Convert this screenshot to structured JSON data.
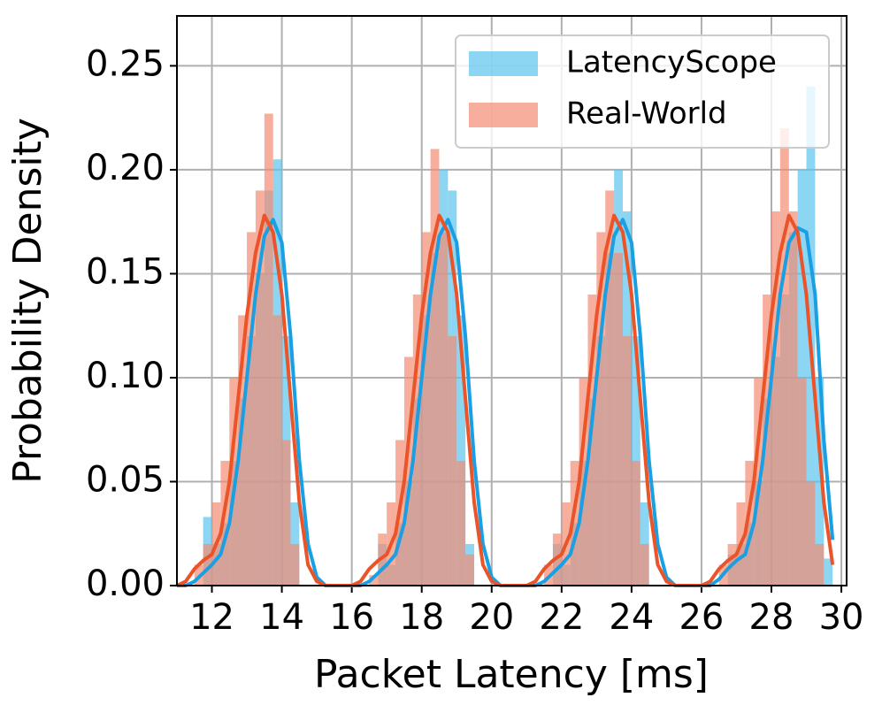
{
  "chart_data": {
    "type": "histogram",
    "xlabel": "Packet Latency [ms]",
    "ylabel": "Probability Density",
    "xlim": [
      11.0,
      30.15
    ],
    "ylim": [
      0,
      0.274
    ],
    "xticks": [
      12,
      14,
      16,
      18,
      20,
      22,
      24,
      26,
      28,
      30
    ],
    "yticks": [
      {
        "value": 0,
        "label": "0.00"
      },
      0.05,
      {
        "value": 0.1,
        "label": "0.10"
      },
      0.15,
      {
        "value": 0.2,
        "label": "0.20"
      },
      0.25
    ],
    "grid": true,
    "legend": "upper right",
    "bins": [
      11.5,
      11.75,
      12,
      12.25,
      12.5,
      12.75,
      13,
      13.25,
      13.5,
      13.75,
      14,
      14.25,
      14.5,
      14.75,
      15,
      15.25,
      15.5,
      15.75,
      16,
      16.25,
      16.5,
      16.75,
      17,
      17.25,
      17.5,
      17.75,
      18,
      18.25,
      18.5,
      18.75,
      19,
      19.25,
      19.5,
      19.75,
      20,
      20.25,
      20.5,
      20.75,
      21,
      21.25,
      21.5,
      21.75,
      22,
      22.25,
      22.5,
      22.75,
      23,
      23.25,
      23.5,
      23.75,
      24,
      24.25,
      24.5,
      24.75,
      25,
      25.25,
      25.5,
      25.75,
      26,
      26.25,
      26.5,
      26.75,
      27,
      27.25,
      27.5,
      27.75,
      28,
      28.25,
      28.5,
      28.75,
      29,
      29.25,
      29.5,
      29.75
    ],
    "series": [
      {
        "name": "LatencyScope",
        "color": "#5bc3ee",
        "values": [
          0,
          0.033,
          0.02,
          0.03,
          0.06,
          0.09,
          0.12,
          0.15,
          0.19,
          0.205,
          0.12,
          0.04,
          0,
          0,
          0,
          0,
          0,
          0,
          0,
          0,
          0,
          0.02,
          0.01,
          0.03,
          0.05,
          0.09,
          0.13,
          0.16,
          0.2,
          0.19,
          0.13,
          0.02,
          0,
          0,
          0,
          0,
          0,
          0,
          0,
          0,
          0,
          0.02,
          0.01,
          0.03,
          0.06,
          0.09,
          0.12,
          0.16,
          0.2,
          0.18,
          0.12,
          0.04,
          0,
          0,
          0,
          0,
          0,
          0,
          0,
          0,
          0,
          0.015,
          0.02,
          0.03,
          0.05,
          0.09,
          0.11,
          0.14,
          0.17,
          0.2,
          0.24,
          0.1,
          0.013
        ]
      },
      {
        "name": "Real-World",
        "color": "#f48c72",
        "values": [
          0.01,
          0.02,
          0.04,
          0.06,
          0.1,
          0.13,
          0.17,
          0.19,
          0.227,
          0.13,
          0.07,
          0.02,
          0,
          0,
          0,
          0,
          0,
          0,
          0,
          0,
          0.005,
          0.025,
          0.04,
          0.07,
          0.11,
          0.14,
          0.17,
          0.21,
          0.17,
          0.12,
          0.06,
          0.015,
          0,
          0,
          0,
          0,
          0,
          0,
          0,
          0,
          0.01,
          0.025,
          0.04,
          0.06,
          0.1,
          0.14,
          0.17,
          0.19,
          0.16,
          0.12,
          0.06,
          0.02,
          0,
          0,
          0,
          0,
          0,
          0,
          0,
          0,
          0.01,
          0.02,
          0.04,
          0.06,
          0.1,
          0.14,
          0.18,
          0.22,
          0.18,
          0.1,
          0.05,
          0.02,
          0
        ]
      }
    ],
    "kde_x": [
      11,
      11.25,
      11.5,
      11.75,
      12,
      12.25,
      12.5,
      12.75,
      13,
      13.25,
      13.5,
      13.75,
      14,
      14.25,
      14.5,
      14.75,
      15,
      15.25,
      15.5,
      15.75,
      16,
      16.25,
      16.5,
      16.75,
      17,
      17.25,
      17.5,
      17.75,
      18,
      18.25,
      18.5,
      18.75,
      19,
      19.25,
      19.5,
      19.75,
      20,
      20.25,
      20.5,
      20.75,
      21,
      21.25,
      21.5,
      21.75,
      22,
      22.25,
      22.5,
      22.75,
      23,
      23.25,
      23.5,
      23.75,
      24,
      24.25,
      24.5,
      24.75,
      25,
      25.25,
      25.5,
      25.75,
      26,
      26.25,
      26.5,
      26.75,
      27,
      27.25,
      27.5,
      27.75,
      28,
      28.25,
      28.5,
      28.75,
      29,
      29.25,
      29.5,
      29.75
    ],
    "kde": [
      {
        "color": "#1a9fe3",
        "values": [
          0,
          0,
          0.002,
          0.006,
          0.01,
          0.015,
          0.03,
          0.06,
          0.1,
          0.14,
          0.168,
          0.176,
          0.165,
          0.12,
          0.06,
          0.02,
          0.004,
          0,
          0,
          0,
          0,
          0,
          0.002,
          0.006,
          0.01,
          0.015,
          0.03,
          0.06,
          0.1,
          0.14,
          0.168,
          0.176,
          0.165,
          0.12,
          0.06,
          0.02,
          0.004,
          0,
          0,
          0,
          0,
          0,
          0.002,
          0.006,
          0.01,
          0.015,
          0.03,
          0.06,
          0.1,
          0.14,
          0.168,
          0.176,
          0.165,
          0.12,
          0.06,
          0.02,
          0.004,
          0,
          0,
          0,
          0,
          0,
          0.003,
          0.008,
          0.012,
          0.015,
          0.03,
          0.06,
          0.1,
          0.14,
          0.165,
          0.172,
          0.17,
          0.14,
          0.07,
          0.022
        ]
      },
      {
        "color": "#ea5428",
        "values": [
          0,
          0.002,
          0.008,
          0.012,
          0.015,
          0.025,
          0.05,
          0.09,
          0.13,
          0.16,
          0.178,
          0.17,
          0.14,
          0.09,
          0.04,
          0.01,
          0.002,
          0,
          0,
          0,
          0,
          0.002,
          0.008,
          0.012,
          0.015,
          0.025,
          0.05,
          0.09,
          0.13,
          0.16,
          0.178,
          0.17,
          0.14,
          0.09,
          0.04,
          0.01,
          0.002,
          0,
          0,
          0,
          0,
          0.002,
          0.008,
          0.012,
          0.015,
          0.025,
          0.05,
          0.09,
          0.13,
          0.16,
          0.178,
          0.17,
          0.14,
          0.09,
          0.04,
          0.01,
          0.002,
          0,
          0,
          0,
          0,
          0.002,
          0.008,
          0.012,
          0.015,
          0.025,
          0.05,
          0.09,
          0.13,
          0.16,
          0.178,
          0.17,
          0.14,
          0.09,
          0.04,
          0.01
        ]
      }
    ]
  }
}
